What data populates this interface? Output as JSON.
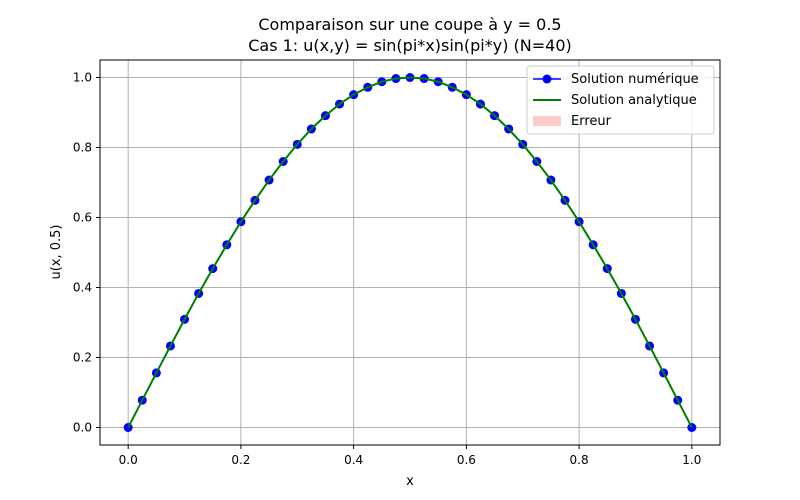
{
  "chart_data": {
    "type": "line",
    "title_line1": "Comparaison sur une coupe à y = 0.5",
    "title_line2": "Cas 1: u(x,y) = sin(pi*x)sin(pi*y) (N=40)",
    "xlabel": "x",
    "ylabel": "u(x, 0.5)",
    "xlim": [
      -0.05,
      1.05
    ],
    "ylim": [
      -0.05,
      1.05
    ],
    "xticks": [
      0.0,
      0.2,
      0.4,
      0.6,
      0.8,
      1.0
    ],
    "yticks": [
      0.0,
      0.2,
      0.4,
      0.6,
      0.8,
      1.0
    ],
    "xtick_labels": [
      "0.0",
      "0.2",
      "0.4",
      "0.6",
      "0.8",
      "1.0"
    ],
    "ytick_labels": [
      "0.0",
      "0.2",
      "0.4",
      "0.6",
      "0.8",
      "1.0"
    ],
    "grid": true,
    "legend_position": "top-right",
    "x": [
      0.0,
      0.025,
      0.05,
      0.075,
      0.1,
      0.125,
      0.15,
      0.175,
      0.2,
      0.225,
      0.25,
      0.275,
      0.3,
      0.325,
      0.35,
      0.375,
      0.4,
      0.425,
      0.45,
      0.475,
      0.5,
      0.525,
      0.55,
      0.575,
      0.6,
      0.625,
      0.65,
      0.675,
      0.7,
      0.725,
      0.75,
      0.775,
      0.8,
      0.825,
      0.85,
      0.875,
      0.9,
      0.925,
      0.95,
      0.975,
      1.0
    ],
    "series": [
      {
        "name": "Solution numérique",
        "color": "#0000ff",
        "marker": "circle",
        "values": [
          0.0,
          0.078,
          0.156,
          0.233,
          0.309,
          0.383,
          0.454,
          0.522,
          0.588,
          0.649,
          0.707,
          0.76,
          0.809,
          0.853,
          0.891,
          0.924,
          0.951,
          0.972,
          0.988,
          0.997,
          1.0,
          0.997,
          0.988,
          0.972,
          0.951,
          0.924,
          0.891,
          0.853,
          0.809,
          0.76,
          0.707,
          0.649,
          0.588,
          0.522,
          0.454,
          0.383,
          0.309,
          0.233,
          0.156,
          0.078,
          0.0
        ]
      },
      {
        "name": "Solution analytique",
        "color": "#008000",
        "marker": "none",
        "values": [
          0.0,
          0.078,
          0.156,
          0.233,
          0.309,
          0.383,
          0.454,
          0.522,
          0.588,
          0.649,
          0.707,
          0.76,
          0.809,
          0.853,
          0.891,
          0.924,
          0.951,
          0.972,
          0.988,
          0.997,
          1.0,
          0.997,
          0.988,
          0.972,
          0.951,
          0.924,
          0.891,
          0.853,
          0.809,
          0.76,
          0.707,
          0.649,
          0.588,
          0.522,
          0.454,
          0.383,
          0.309,
          0.233,
          0.156,
          0.078,
          0.0
        ]
      },
      {
        "name": "Erreur",
        "color": "#ffb3b3",
        "type": "area",
        "values": [
          0.0,
          0.0,
          0.0,
          0.0,
          0.0,
          0.0,
          0.0,
          0.0,
          0.0,
          0.0,
          0.0,
          0.0,
          0.0,
          0.0,
          0.0,
          0.0,
          0.0,
          0.0,
          0.0,
          0.0,
          0.0,
          0.0,
          0.0,
          0.0,
          0.0,
          0.0,
          0.0,
          0.0,
          0.0,
          0.0,
          0.0,
          0.0,
          0.0,
          0.0,
          0.0,
          0.0,
          0.0,
          0.0,
          0.0,
          0.0,
          0.0
        ]
      }
    ]
  }
}
